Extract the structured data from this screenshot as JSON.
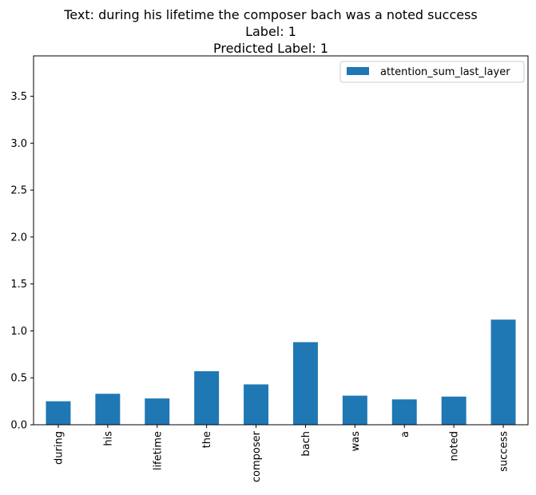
{
  "chart_data": {
    "type": "bar",
    "title_lines": [
      "Text: during his lifetime the composer bach was a noted success",
      "Label: 1",
      "Predicted Label: 1"
    ],
    "xlabel": "",
    "ylabel": "",
    "categories": [
      "during",
      "his",
      "lifetime",
      "the",
      "composer",
      "bach",
      "was",
      "a",
      "noted",
      "success"
    ],
    "series": [
      {
        "name": "attention_sum_last_layer",
        "color": "#1f77b4",
        "values": [
          0.25,
          0.33,
          0.28,
          0.57,
          0.43,
          0.88,
          0.31,
          0.27,
          0.3,
          1.12
        ]
      }
    ],
    "ylim": [
      0,
      3.93
    ],
    "yticks": [
      {
        "value": 0.0,
        "label": "0.0"
      },
      {
        "value": 0.5,
        "label": "0.5"
      },
      {
        "value": 1.0,
        "label": "1.0"
      },
      {
        "value": 1.5,
        "label": "1.5"
      },
      {
        "value": 2.0,
        "label": "2.0"
      },
      {
        "value": 2.5,
        "label": "2.5"
      },
      {
        "value": 3.0,
        "label": "3.0"
      },
      {
        "value": 3.5,
        "label": "3.5"
      }
    ],
    "legend_position": "top-right",
    "grid": false
  }
}
